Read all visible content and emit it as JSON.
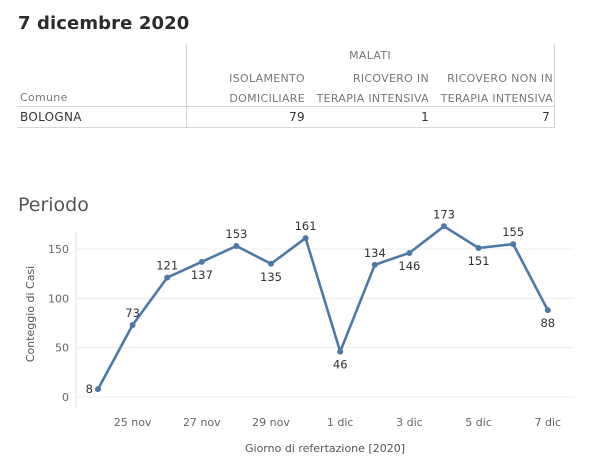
{
  "header": {
    "title": "7 dicembre 2020"
  },
  "table": {
    "group_header": "MALATI",
    "row_header": "Comune",
    "columns": [
      {
        "line1": "ISOLAMENTO",
        "line2": "DOMICILIARE"
      },
      {
        "line1": "RICOVERO IN",
        "line2": "TERAPIA INTENSIVA"
      },
      {
        "line1": "RICOVERO NON IN",
        "line2": "TERAPIA INTENSIVA"
      }
    ],
    "rows": [
      {
        "comune": "BOLOGNA",
        "values": [
          "79",
          "1",
          "7"
        ]
      }
    ]
  },
  "section": {
    "title": "Periodo"
  },
  "chart_data": {
    "type": "line",
    "xlabel": "Giorno di refertazione [2020]",
    "ylabel": "Conteggio di Casi",
    "ylim": [
      0,
      175
    ],
    "yticks": [
      0,
      50,
      100,
      150
    ],
    "x_labels": [
      "25 nov",
      "27 nov",
      "29 nov",
      "1 dic",
      "3 dic",
      "5 dic",
      "7 dic"
    ],
    "x": [
      "24 nov",
      "25 nov",
      "26 nov",
      "27 nov",
      "28 nov",
      "29 nov",
      "30 nov",
      "1 dic",
      "2 dic",
      "3 dic",
      "4 dic",
      "5 dic",
      "6 dic",
      "7 dic"
    ],
    "series": [
      {
        "values": [
          8,
          73,
          121,
          137,
          153,
          135,
          161,
          46,
          134,
          146,
          173,
          151,
          155,
          88
        ]
      }
    ],
    "label_positions": [
      "left",
      "above",
      "above",
      "below",
      "above",
      "below",
      "above",
      "below",
      "above",
      "below",
      "above",
      "below",
      "above",
      "below"
    ],
    "color": "#4e79a7",
    "grid": true,
    "legend": "none"
  }
}
